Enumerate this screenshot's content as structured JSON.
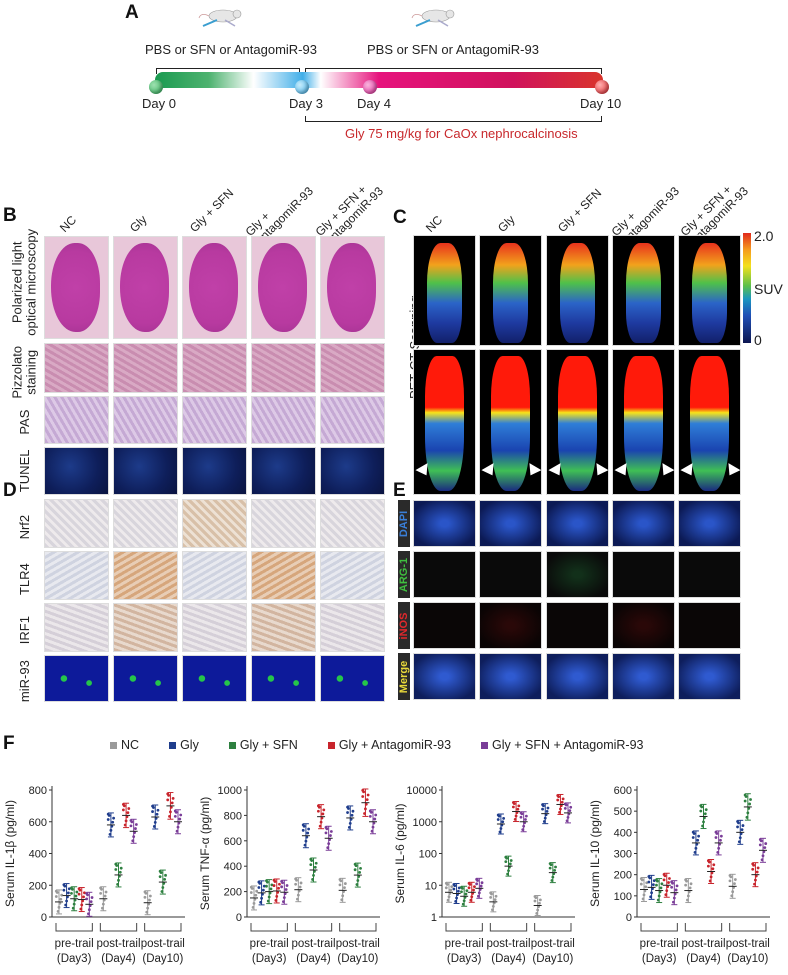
{
  "panels": {
    "A": {
      "letter": "A",
      "treatment_label_1": "PBS or SFN or AntagomiR-93",
      "treatment_label_2": "PBS or SFN or AntagomiR-93",
      "days": [
        "Day 0",
        "Day 3",
        "Day 4",
        "Day 10"
      ],
      "gly_label": "Gly 75 mg/kg for CaOx nephrocalcinosis",
      "colors": {
        "day0": "#2fb05a",
        "day3": "#3fb0ea",
        "day4": "#e0279a",
        "day10": "#e0242a",
        "gly_text": "#c8282c"
      }
    },
    "B": {
      "letter": "B",
      "groups": [
        "NC",
        "Gly",
        "Gly + SFN",
        "Gly + AntagomiR-93",
        "Gly + SFN + AntagomiR-93"
      ],
      "group_lines": [
        [
          "NC"
        ],
        [
          "Gly"
        ],
        [
          "Gly + SFN"
        ],
        [
          "Gly +",
          "AntagomiR-93"
        ],
        [
          "Gly + SFN +",
          "AntagomiR-93"
        ]
      ],
      "rows": [
        "Polarized light optical microscopy",
        "Pizzolato staining",
        "PAS",
        "TUNEL"
      ],
      "row_lines": [
        [
          "Polarized light",
          "optical microscopy"
        ],
        [
          "Pizzolato",
          "staining"
        ],
        [
          "PAS"
        ],
        [
          "TUNEL"
        ]
      ]
    },
    "C": {
      "letter": "C",
      "groups": [
        "NC",
        "Gly",
        "Gly + SFN",
        "Gly + AntagomiR-93",
        "Gly + SFN + AntagomiR-93"
      ],
      "row_label": "PET-CT Scanning",
      "colorbar": {
        "max": "2.0",
        "label": "SUV",
        "min": "0"
      }
    },
    "D": {
      "letter": "D",
      "rows": [
        "Nrf2",
        "TLR4",
        "IRF1",
        "miR-93"
      ]
    },
    "E": {
      "letter": "E",
      "rows": [
        "DAPI",
        "ARG-1",
        "iNOS",
        "Merge"
      ],
      "row_colors": [
        "#3a7fd8",
        "#3fbf3f",
        "#e0282c",
        "#e8d83a"
      ]
    },
    "F": {
      "letter": "F",
      "legend": [
        {
          "label": "NC",
          "color": "#9a9a9a"
        },
        {
          "label": "Gly",
          "color": "#1f3d8c"
        },
        {
          "label": "Gly + SFN",
          "color": "#2e8040"
        },
        {
          "label": "Gly + AntagomiR-93",
          "color": "#c8242c"
        },
        {
          "label": "Gly + SFN + AntagomiR-93",
          "color": "#7a3d98"
        }
      ],
      "x_groups": [
        {
          "line1": "pre-trail",
          "line2": "(Day3)"
        },
        {
          "line1": "post-trail",
          "line2": "(Day4)"
        },
        {
          "line1": "post-trail",
          "line2": "(Day10)"
        }
      ]
    }
  },
  "chart_data": [
    {
      "type": "scatter",
      "title": "Serum IL-1β",
      "ylabel": "Serum IL-1β (pg/ml)",
      "ylim": [
        0,
        800
      ],
      "yticks": [
        "0",
        "200",
        "400",
        "600",
        "800"
      ],
      "categories": [
        "pre-trail (Day3)",
        "post-trail (Day4)",
        "post-trail (Day10)"
      ],
      "series": [
        {
          "name": "NC",
          "values": [
            95,
            115,
            90
          ]
        },
        {
          "name": "Gly",
          "values": [
            135,
            580,
            630
          ]
        },
        {
          "name": "Gly + SFN",
          "values": [
            115,
            265,
            220
          ]
        },
        {
          "name": "Gly + AntagomiR-93",
          "values": [
            110,
            640,
            700
          ]
        },
        {
          "name": "Gly + SFN + AntagomiR-93",
          "values": [
            80,
            540,
            600
          ]
        }
      ],
      "annotations": [
        "**",
        "**",
        "*",
        "**",
        "**",
        "*"
      ]
    },
    {
      "type": "scatter",
      "title": "Serum TNF-α",
      "ylabel": "Serum TNF-α (pg/ml)",
      "ylim": [
        0,
        1000
      ],
      "yticks": [
        "0",
        "200",
        "400",
        "600",
        "800",
        "1000"
      ],
      "categories": [
        "pre-trail (Day3)",
        "post-trail (Day4)",
        "post-trail (Day10)"
      ],
      "series": [
        {
          "name": "NC",
          "values": [
            150,
            215,
            210
          ]
        },
        {
          "name": "Gly",
          "values": [
            190,
            640,
            780
          ]
        },
        {
          "name": "Gly + SFN",
          "values": [
            200,
            370,
            330
          ]
        },
        {
          "name": "Gly + AntagomiR-93",
          "values": [
            205,
            790,
            900
          ]
        },
        {
          "name": "Gly + SFN + AntagomiR-93",
          "values": [
            195,
            620,
            750
          ]
        }
      ],
      "annotations": [
        "*",
        "*",
        "**",
        "**",
        "*",
        "**"
      ]
    },
    {
      "type": "scatter",
      "title": "Serum IL-6",
      "ylabel": "Serum IL-6 (pg/ml)",
      "yscale": "log",
      "ylim": [
        1,
        10000
      ],
      "yticks": [
        "1",
        "10",
        "100",
        "1000",
        "10000"
      ],
      "categories": [
        "pre-trail (Day3)",
        "post-trail (Day4)",
        "post-trail (Day10)"
      ],
      "series": [
        {
          "name": "NC",
          "values": [
            6,
            3,
            2.3
          ]
        },
        {
          "name": "Gly",
          "values": [
            5.5,
            850,
            1800
          ]
        },
        {
          "name": "Gly + SFN",
          "values": [
            4.5,
            40,
            25
          ]
        },
        {
          "name": "Gly + AntagomiR-93",
          "values": [
            6,
            2100,
            3500
          ]
        },
        {
          "name": "Gly + SFN + AntagomiR-93",
          "values": [
            8,
            1000,
            1900
          ]
        }
      ],
      "annotations": [
        "***",
        "*",
        "**",
        "***",
        "***"
      ]
    },
    {
      "type": "scatter",
      "title": "Serum IL-10",
      "ylabel": "Serum IL-10 (pg/ml)",
      "ylim": [
        0,
        600
      ],
      "yticks": [
        "0",
        "100",
        "200",
        "300",
        "400",
        "500",
        "600"
      ],
      "categories": [
        "pre-trail (Day3)",
        "post-trail (Day4)",
        "post-trail (Day10)"
      ],
      "series": [
        {
          "name": "NC",
          "values": [
            130,
            125,
            145
          ]
        },
        {
          "name": "Gly",
          "values": [
            140,
            350,
            400
          ]
        },
        {
          "name": "Gly + SFN",
          "values": [
            125,
            475,
            520
          ]
        },
        {
          "name": "Gly + AntagomiR-93",
          "values": [
            150,
            215,
            200
          ]
        },
        {
          "name": "Gly + SFN + AntagomiR-93",
          "values": [
            115,
            350,
            315
          ]
        }
      ],
      "annotations": [
        "*",
        "*",
        "**",
        "*",
        "**",
        "**"
      ]
    }
  ]
}
